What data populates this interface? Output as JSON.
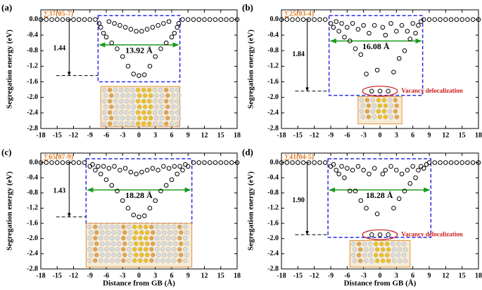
{
  "chart_data": [
    {
      "type": "scatter",
      "panel_label": "(a)",
      "gb_label": "∑37(05-7)",
      "energy_label": "1.44",
      "width_label": "13.92 Å",
      "y_label": "Segregation energy (eV)",
      "color": "#000000",
      "x": [
        -18,
        -17,
        -16,
        -15,
        -14,
        -13,
        -12,
        -11,
        -10,
        -9,
        -8,
        -7.3,
        -7,
        -6.5,
        -6,
        -5.5,
        -5,
        -4.5,
        -4,
        -3.5,
        -3,
        -2.5,
        -2,
        -1.5,
        -1,
        -0.5,
        0,
        0.5,
        1,
        1.5,
        2,
        2.5,
        3,
        3.5,
        4,
        4.5,
        5,
        5.5,
        6,
        6.5,
        7,
        7.3,
        8,
        9,
        10,
        11,
        12,
        13,
        14,
        15,
        16,
        17,
        18
      ],
      "values": [
        0,
        0,
        0,
        0,
        0,
        0,
        0,
        0,
        0,
        0,
        0,
        -0.1,
        -0.2,
        -0.35,
        -0.45,
        -0.05,
        -0.6,
        -0.1,
        -0.75,
        -0.15,
        -0.95,
        -0.2,
        -1.2,
        -0.25,
        -1.4,
        -0.3,
        -1.44,
        -0.3,
        -1.42,
        -0.25,
        -1.2,
        -0.2,
        -0.95,
        -0.15,
        -0.75,
        -0.1,
        -0.6,
        -0.05,
        -0.45,
        -0.35,
        -0.2,
        -0.1,
        0,
        0,
        0,
        0,
        0,
        0,
        0,
        0,
        0,
        0,
        0
      ],
      "xlim": [
        -18,
        18
      ],
      "ylim": [
        -2.8,
        0.25
      ],
      "xticks": [
        -18,
        -15,
        -12,
        -9,
        -6,
        -3,
        0,
        3,
        6,
        9,
        12,
        15,
        18
      ],
      "yticks": [
        {
          "value": 0,
          "label": "0.0"
        },
        -0.4,
        -0.8,
        -1.2,
        -1.6,
        {
          "value": -2,
          "label": "-2.0"
        },
        -2.4,
        -2.8
      ]
    },
    {
      "type": "scatter",
      "panel_label": "(b)",
      "gb_label": "∑25(03-4)",
      "energy_label": "1.84",
      "width_label": "16.08 Å",
      "note": "Vacancy delocalization",
      "y_label": "Segregation energy (eV)",
      "color": "#000000",
      "x": [
        -18,
        -17,
        -16,
        -15,
        -14,
        -13,
        -12,
        -11,
        -10,
        -9,
        -8.5,
        -8,
        -7.5,
        -7,
        -6.5,
        -6,
        -5.5,
        -5,
        -4.5,
        -4,
        -3.5,
        -3,
        -2.5,
        -2,
        -1.5,
        -1,
        -0.5,
        0,
        0.5,
        1,
        1.5,
        2,
        2.5,
        3,
        3.5,
        4,
        4.5,
        5,
        5.5,
        6,
        6.5,
        7,
        7.5,
        8,
        9,
        10,
        11,
        12,
        13,
        14,
        15,
        16,
        17,
        18
      ],
      "values": [
        0,
        0,
        0,
        0,
        0,
        0,
        0,
        0,
        0,
        -0.1,
        -0.2,
        -0.05,
        -0.3,
        -0.1,
        -0.45,
        -0.2,
        -0.55,
        -0.1,
        -0.75,
        -0.25,
        -0.9,
        -0.15,
        -1.4,
        -0.35,
        -1.84,
        -0.15,
        -1.3,
        -1.84,
        -0.2,
        -0.4,
        -1.84,
        -0.1,
        -1.35,
        -0.3,
        -1.0,
        -0.15,
        -0.8,
        -0.3,
        -0.5,
        -0.1,
        -0.35,
        -0.15,
        -0.05,
        0,
        0,
        0,
        0,
        0,
        0,
        0,
        0,
        0,
        0,
        0
      ],
      "xlim": [
        -18,
        18
      ],
      "ylim": [
        -2.8,
        0.25
      ],
      "xticks": [
        -18,
        -15,
        -12,
        -9,
        -6,
        -3,
        0,
        3,
        6,
        9,
        12,
        15,
        18
      ],
      "yticks": [
        {
          "value": 0,
          "label": "0.0"
        },
        -0.4,
        -0.8,
        -1.2,
        -1.6,
        {
          "value": -2,
          "label": "-2.0"
        },
        -2.4,
        -2.8
      ]
    },
    {
      "type": "scatter",
      "panel_label": "(c)",
      "gb_label": "∑65(07-9)",
      "energy_label": "1.43",
      "width_label": "18.28 Å",
      "y_label": "Segregation energy (eV)",
      "x_label": "Distance from GB (Å)",
      "color": "#000000",
      "x": [
        -18,
        -17,
        -16,
        -15,
        -14,
        -13,
        -12,
        -11,
        -10,
        -9,
        -8.5,
        -8,
        -7.5,
        -7,
        -6.5,
        -6,
        -5.5,
        -5,
        -4.5,
        -4,
        -3.5,
        -3,
        -2.5,
        -2,
        -1.5,
        -1,
        -0.5,
        0,
        0.5,
        1,
        1.5,
        2,
        2.5,
        3,
        3.5,
        4,
        4.5,
        5,
        5.5,
        6,
        6.5,
        7,
        7.5,
        8,
        8.5,
        9,
        10,
        11,
        12,
        13,
        14,
        15,
        16,
        17,
        18
      ],
      "values": [
        0,
        0,
        0,
        0,
        0,
        0,
        0,
        0,
        0,
        -0.1,
        -0.05,
        -0.2,
        -0.1,
        -0.3,
        -0.1,
        -0.45,
        -0.15,
        -0.6,
        -0.1,
        -0.75,
        -0.2,
        -1.0,
        -0.15,
        -1.2,
        -0.25,
        -1.38,
        -0.3,
        -1.43,
        -0.25,
        -1.4,
        -0.2,
        -1.2,
        -0.15,
        -1.0,
        -0.2,
        -0.75,
        -0.1,
        -0.6,
        -0.15,
        -0.45,
        -0.1,
        -0.3,
        -0.1,
        -0.2,
        -0.05,
        -0.1,
        0,
        0,
        0,
        0,
        0,
        0,
        0,
        0,
        0
      ],
      "xlim": [
        -18,
        18
      ],
      "ylim": [
        -2.8,
        0.25
      ],
      "xticks": [
        -18,
        -15,
        -12,
        -9,
        -6,
        -3,
        0,
        3,
        6,
        9,
        12,
        15,
        18
      ],
      "yticks": [
        {
          "value": 0,
          "label": "0.0"
        },
        -0.4,
        -0.8,
        -1.2,
        -1.6,
        {
          "value": -2,
          "label": "-2.0"
        },
        -2.4,
        -2.8
      ]
    },
    {
      "type": "scatter",
      "panel_label": "(d)",
      "gb_label": "∑41(04-5)",
      "energy_label": "1.90",
      "width_label": "18.28 Å",
      "note": "Vacancy delocalization",
      "y_label": "Segregation energy (eV)",
      "x_label": "Distance from GB (Å)",
      "color": "#000000",
      "x": [
        -18,
        -17,
        -16,
        -15,
        -14,
        -13,
        -12,
        -11,
        -10,
        -9,
        -8.5,
        -8,
        -7.5,
        -7,
        -6.5,
        -6,
        -5.5,
        -5,
        -4.5,
        -4,
        -3.5,
        -3,
        -2.5,
        -2,
        -1.5,
        -1,
        -0.5,
        0,
        0.5,
        1,
        1.5,
        2,
        2.5,
        3,
        3.5,
        4,
        4.5,
        5,
        5.5,
        6,
        6.5,
        7,
        7.5,
        8,
        8.5,
        9,
        10,
        11,
        12,
        13,
        14,
        15,
        16,
        17,
        18
      ],
      "values": [
        0,
        0,
        0,
        0,
        0,
        0,
        0,
        0,
        0,
        -0.1,
        -0.05,
        -0.2,
        -0.3,
        -0.1,
        -0.4,
        -0.15,
        -0.75,
        -0.2,
        -0.75,
        -0.1,
        -1.0,
        -0.2,
        -1.2,
        -0.3,
        -1.9,
        -0.15,
        -1.35,
        -1.9,
        -0.3,
        -0.2,
        -1.9,
        -0.1,
        -1.2,
        -0.2,
        -0.95,
        -0.3,
        -0.75,
        -0.2,
        -0.55,
        -0.1,
        -0.4,
        -0.2,
        -0.1,
        -0.15,
        -0.05,
        0,
        0,
        0,
        0,
        0,
        0,
        0,
        0,
        0,
        0
      ],
      "xlim": [
        -18,
        18
      ],
      "ylim": [
        -2.8,
        0.25
      ],
      "xticks": [
        -18,
        -15,
        -12,
        -9,
        -6,
        -3,
        0,
        3,
        6,
        9,
        12,
        15,
        18
      ],
      "yticks": [
        {
          "value": 0,
          "label": "0.0"
        },
        -0.4,
        -0.8,
        -1.2,
        -1.6,
        {
          "value": -2,
          "label": "-2.0"
        },
        -2.4,
        -2.8
      ]
    }
  ]
}
